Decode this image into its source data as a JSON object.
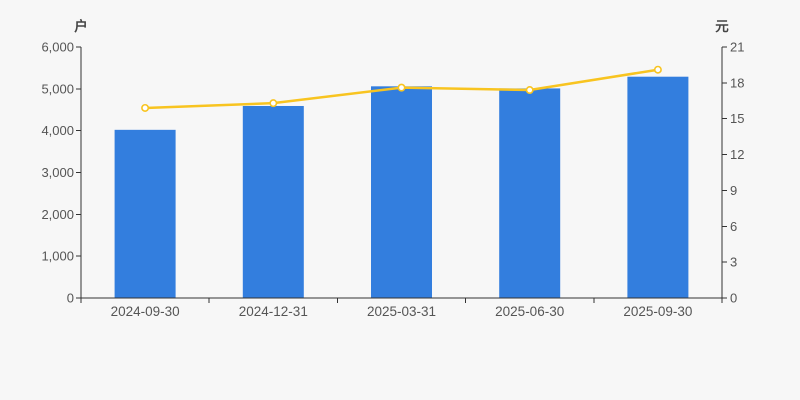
{
  "chart_data": {
    "type": "bar",
    "subtype": "bar-line-combo",
    "categories": [
      "2024-09-30",
      "2024-12-31",
      "2025-03-31",
      "2025-06-30",
      "2025-09-30"
    ],
    "series": [
      {
        "name": "households-bar",
        "type": "bar",
        "yaxis": "left",
        "color": "#337ede",
        "values": [
          4020,
          4590,
          5060,
          5010,
          5290
        ]
      },
      {
        "name": "price-line",
        "type": "line",
        "yaxis": "right",
        "color": "#f8c420",
        "marker": "hollow-circle",
        "values": [
          15.9,
          16.3,
          17.6,
          17.4,
          19.1
        ]
      }
    ],
    "left_axis": {
      "name": "户",
      "min": 0,
      "max": 6000,
      "step": 1000,
      "tick_labels": [
        "0",
        "1,000",
        "2,000",
        "3,000",
        "4,000",
        "5,000",
        "6,000"
      ]
    },
    "right_axis": {
      "name": "元",
      "min": 0,
      "max": 21,
      "step": 3,
      "tick_labels": [
        "0",
        "3",
        "6",
        "9",
        "12",
        "15",
        "18",
        "21"
      ]
    },
    "title": "",
    "xlabel": "",
    "ylabel_left": "户",
    "ylabel_right": "元",
    "grid": false,
    "legend": false,
    "background": "#f7f7f7",
    "axis_color": "#333333",
    "text_color": "#555555",
    "axis_name_color": "#444444"
  }
}
